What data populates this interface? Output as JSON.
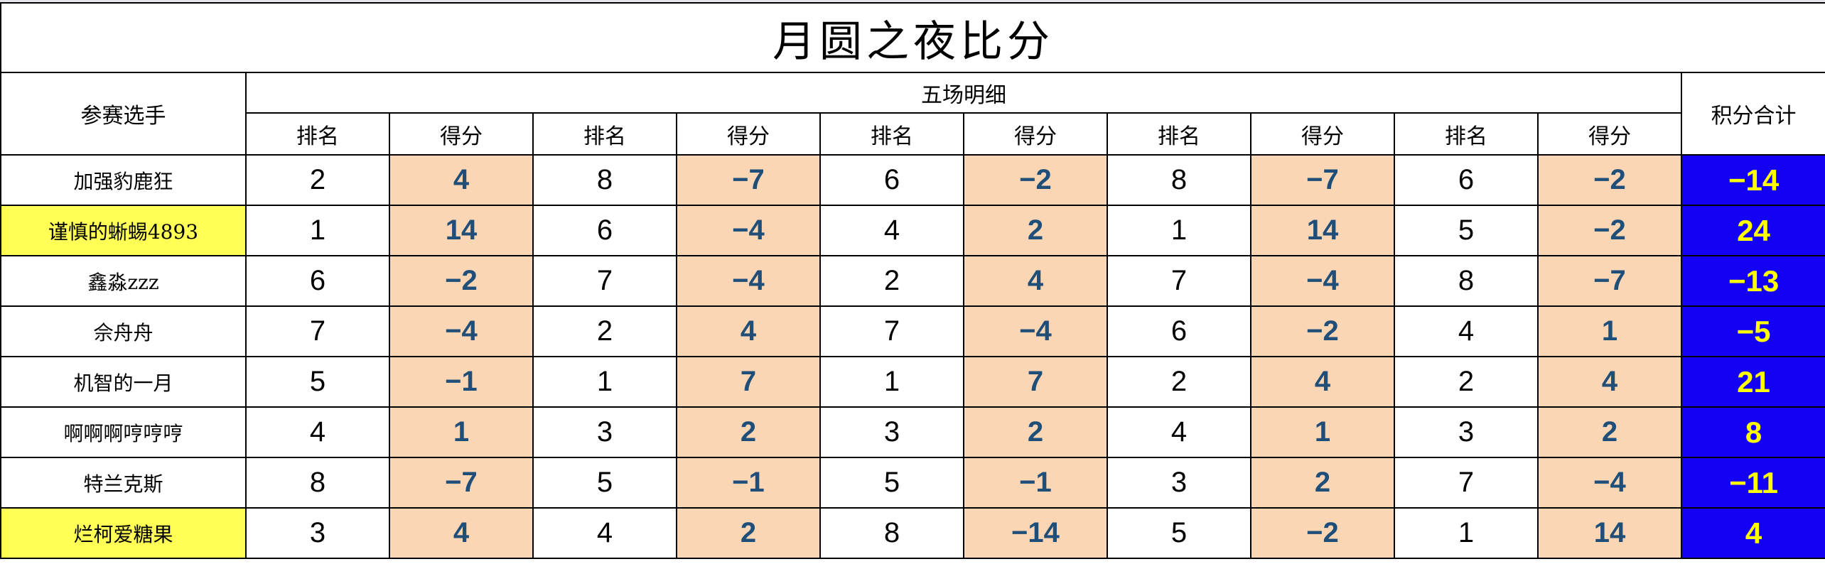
{
  "title": "月圆之夜比分",
  "headers": {
    "player": "参赛选手",
    "details": "五场明细",
    "total": "积分合计",
    "rank": "排名",
    "score": "得分"
  },
  "colors": {
    "score_bg": "#fad6b5",
    "score_text": "#1f4e79",
    "total_bg": "#1400f5",
    "total_text": "#ffff00",
    "highlight": "#ffff55"
  },
  "rows": [
    {
      "name": "加强豹鹿狂",
      "highlight": false,
      "games": [
        [
          2,
          4
        ],
        [
          8,
          -7
        ],
        [
          6,
          -2
        ],
        [
          8,
          -7
        ],
        [
          6,
          -2
        ]
      ],
      "total": -14
    },
    {
      "name": "谨慎的蜥蜴4893",
      "highlight": true,
      "games": [
        [
          1,
          14
        ],
        [
          6,
          -4
        ],
        [
          4,
          2
        ],
        [
          1,
          14
        ],
        [
          5,
          -2
        ]
      ],
      "total": 24
    },
    {
      "name": "鑫淼zzz",
      "highlight": false,
      "games": [
        [
          6,
          -2
        ],
        [
          7,
          -4
        ],
        [
          2,
          4
        ],
        [
          7,
          -4
        ],
        [
          8,
          -7
        ]
      ],
      "total": -13
    },
    {
      "name": "佘舟舟",
      "highlight": false,
      "games": [
        [
          7,
          -4
        ],
        [
          2,
          4
        ],
        [
          7,
          -4
        ],
        [
          6,
          -2
        ],
        [
          4,
          1
        ]
      ],
      "total": -5
    },
    {
      "name": "机智的一月",
      "highlight": false,
      "games": [
        [
          5,
          -1
        ],
        [
          1,
          7
        ],
        [
          1,
          7
        ],
        [
          2,
          4
        ],
        [
          2,
          4
        ]
      ],
      "total": 21
    },
    {
      "name": "啊啊啊哼哼哼",
      "highlight": false,
      "games": [
        [
          4,
          1
        ],
        [
          3,
          2
        ],
        [
          3,
          2
        ],
        [
          4,
          1
        ],
        [
          3,
          2
        ]
      ],
      "total": 8
    },
    {
      "name": "特兰克斯",
      "highlight": false,
      "games": [
        [
          8,
          -7
        ],
        [
          5,
          -1
        ],
        [
          5,
          -1
        ],
        [
          3,
          2
        ],
        [
          7,
          -4
        ]
      ],
      "total": -11
    },
    {
      "name": "烂柯爱糖果",
      "highlight": true,
      "games": [
        [
          3,
          4
        ],
        [
          4,
          2
        ],
        [
          8,
          -14
        ],
        [
          5,
          -2
        ],
        [
          1,
          14
        ]
      ],
      "total": 4
    }
  ]
}
